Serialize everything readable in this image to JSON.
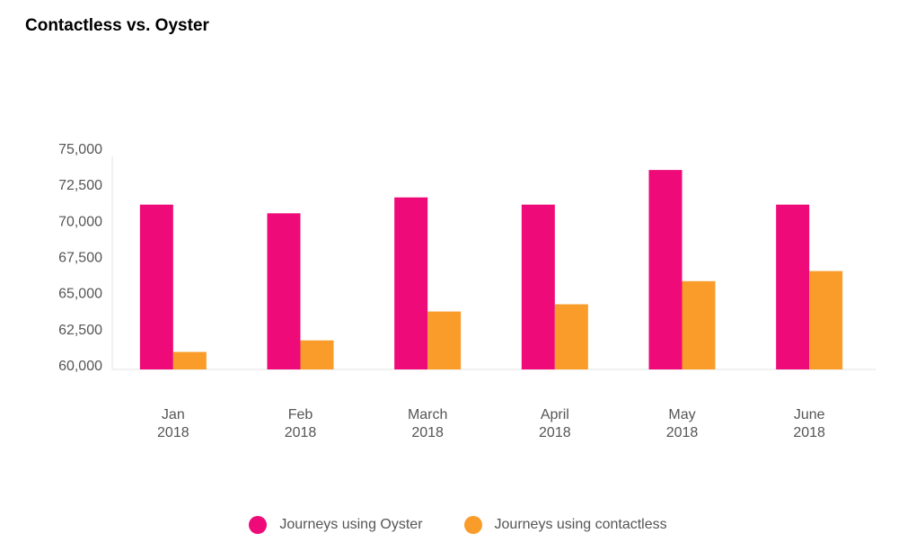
{
  "chart_data": {
    "type": "bar",
    "title": "Contactless vs. Oyster",
    "categories": [
      [
        "Jan",
        "2018"
      ],
      [
        "Feb",
        "2018"
      ],
      [
        "March",
        "2018"
      ],
      [
        "April",
        "2018"
      ],
      [
        "May",
        "2018"
      ],
      [
        "June",
        "2018"
      ]
    ],
    "series": [
      {
        "name": "Journeys using Oyster",
        "color": "#ee0a78",
        "values": [
          71100,
          70500,
          71600,
          71100,
          73500,
          71100
        ]
      },
      {
        "name": "Journeys using contactless",
        "color": "#f99c2a",
        "values": [
          60900,
          61700,
          63700,
          64200,
          65800,
          66500
        ]
      }
    ],
    "ylim": [
      60000,
      75000
    ],
    "yticks": [
      {
        "value": 75000,
        "label": "75,000"
      },
      {
        "value": 72500,
        "label": "72,500"
      },
      {
        "value": 70000,
        "label": "70,000"
      },
      {
        "value": 67500,
        "label": "67,500"
      },
      {
        "value": 65000,
        "label": "65,000"
      },
      {
        "value": 62500,
        "label": "62,500"
      },
      {
        "value": 60000,
        "label": "60,000"
      }
    ],
    "xlabel": "",
    "ylabel": "",
    "grid": false,
    "legend_position": "bottom-center"
  }
}
